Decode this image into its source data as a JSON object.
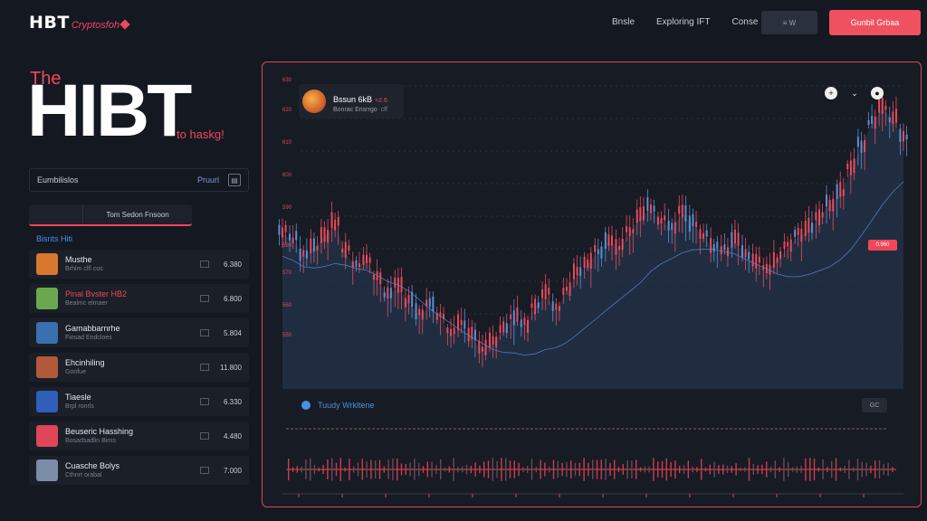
{
  "header": {
    "logo_main": "HBT",
    "logo_sub": "Cryptosfoh",
    "nav": [
      "Bnsle",
      "Exploring IFT",
      "Conse"
    ],
    "btn_dark": "≡ W",
    "btn_red": "Gunbil Grbaa"
  },
  "hero": {
    "the": "The",
    "title": "HIBT",
    "tagline": "to haskg!"
  },
  "panel": {
    "search_label": "Eumbilislos",
    "search_action": "Pruurl",
    "tab_left": "",
    "tab_right": "Tom Sedon Fnsoon",
    "section_label": "Bisnts Hiti",
    "items": [
      {
        "name": "Musthe",
        "sub": "Brhlm clfl cos",
        "value": "6.380",
        "thumb": "#d8772e",
        "accent": false
      },
      {
        "name": "Pinal Bvster HB2",
        "sub": "Bealmc elmaer",
        "value": "6.800",
        "thumb": "#6aa84f",
        "accent": true
      },
      {
        "name": "Gamabbarnrhe",
        "sub": "Fiosad Endcloes",
        "value": "5.804",
        "thumb": "#3a6fb0",
        "accent": false
      },
      {
        "name": "Ehcinhiling",
        "sub": "Gonfue",
        "value": "11.800",
        "thumb": "#b05a3a",
        "accent": false
      },
      {
        "name": "Tiaesle",
        "sub": "Brpl ronrls",
        "value": "6.330",
        "thumb": "#2f5fb8",
        "accent": false
      },
      {
        "name": "Beuseric Hasshing",
        "sub": "Bosadsadlin Birns",
        "value": "4.480",
        "thumb": "#e0455a",
        "accent": false
      },
      {
        "name": "Cuasche Bolys",
        "sub": "Cthnrt orabal",
        "value": "7.000",
        "thumb": "#7a8ca8",
        "accent": false
      }
    ]
  },
  "chart_card": {
    "pair_name": "Bssun 6kB",
    "pair_change": "+2.6",
    "pair_sub": "Bonrac Ensrrgo",
    "pair_sub2": "cff",
    "controls": [
      "+",
      "⌄",
      "●"
    ],
    "y_labels": [
      "630",
      "620",
      "610",
      "600",
      "590",
      "580",
      "570",
      "560",
      "550"
    ],
    "price_tag": "0.960",
    "volume_title": "Tuudy Wrkltene",
    "volume_button": "GC"
  },
  "colors": {
    "accent": "#f0475a",
    "blue": "#4a90e2",
    "candle": "#e84b5c",
    "candle_alt": "#5b8fd6"
  },
  "chart_data": {
    "type": "line",
    "title": "",
    "xlabel": "",
    "ylabel": "",
    "ylim": [
      550,
      630
    ],
    "series": [
      {
        "values": [
          590,
          588,
          584,
          586,
          589,
          592,
          585,
          581,
          583,
          578,
          574,
          576,
          572,
          569,
          571,
          568,
          564,
          566,
          563,
          560,
          562,
          565,
          568,
          566,
          571,
          574,
          570,
          575,
          579,
          582,
          585,
          588,
          586,
          590,
          594,
          596,
          593,
          591,
          595,
          592,
          589,
          586,
          585,
          588,
          584,
          582,
          580,
          583,
          586,
          589,
          591,
          594,
          597,
          600,
          606,
          612,
          618,
          622,
          619,
          614
        ]
      }
    ]
  }
}
